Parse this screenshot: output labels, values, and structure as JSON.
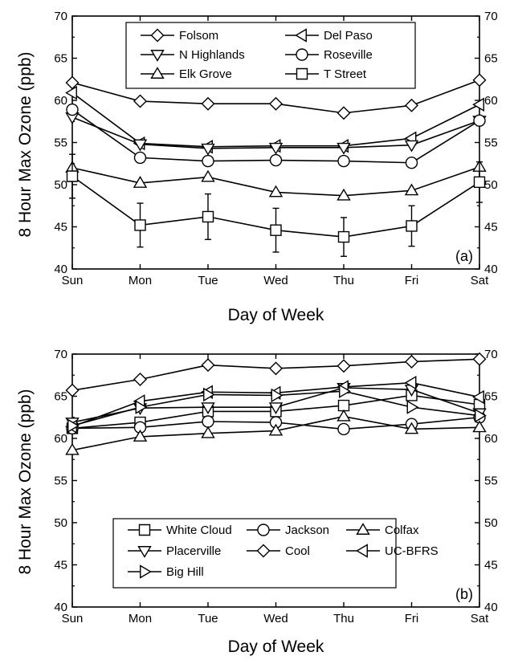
{
  "chart_data": [
    {
      "type": "line",
      "panel_label": "(a)",
      "xlabel": "Day of Week",
      "ylabel": "8 Hour Max Ozone (ppb)",
      "categories": [
        "Sun",
        "Mon",
        "Tue",
        "Wed",
        "Thu",
        "Fri",
        "Sat"
      ],
      "ylim": [
        40,
        70
      ],
      "yticks": [
        "40",
        "45",
        "50",
        "55",
        "60",
        "65",
        "70"
      ],
      "right_axis": true,
      "legend_position": "top-center",
      "series": [
        {
          "name": "Folsom",
          "marker": "diamond",
          "values": [
            62.1,
            59.9,
            59.6,
            59.6,
            58.5,
            59.4,
            62.4
          ]
        },
        {
          "name": "Del Paso",
          "marker": "triangle-left",
          "values": [
            60.9,
            54.9,
            54.5,
            54.6,
            54.6,
            55.5,
            59.5
          ]
        },
        {
          "name": "N Highlands",
          "marker": "triangle-down",
          "values": [
            58.0,
            54.8,
            54.3,
            54.4,
            54.4,
            54.7,
            57.6
          ]
        },
        {
          "name": "Roseville",
          "marker": "circle",
          "values": [
            58.9,
            53.2,
            52.8,
            52.9,
            52.8,
            52.6,
            57.6
          ]
        },
        {
          "name": "Elk Grove",
          "marker": "triangle-up",
          "values": [
            52.0,
            50.2,
            50.9,
            49.1,
            48.7,
            49.3,
            52.1
          ]
        },
        {
          "name": "T Street",
          "marker": "square",
          "values": [
            51.0,
            45.2,
            46.2,
            44.6,
            43.8,
            45.1,
            50.3
          ],
          "error": [
            2.6,
            2.6,
            2.7,
            2.6,
            2.3,
            2.4,
            2.4
          ]
        }
      ]
    },
    {
      "type": "line",
      "panel_label": "(b)",
      "xlabel": "Day of Week",
      "ylabel": "8 Hour Max Ozone (ppb)",
      "categories": [
        "Sun",
        "Mon",
        "Tue",
        "Wed",
        "Thu",
        "Fri",
        "Sat"
      ],
      "ylim": [
        40,
        70
      ],
      "yticks": [
        "40",
        "45",
        "50",
        "55",
        "60",
        "65",
        "70"
      ],
      "right_axis": true,
      "legend_position": "bottom-center",
      "series": [
        {
          "name": "White Cloud",
          "marker": "square",
          "values": [
            61.2,
            61.9,
            63.2,
            63.2,
            63.9,
            65.1,
            64.0
          ]
        },
        {
          "name": "Jackson",
          "marker": "circle",
          "values": [
            61.2,
            61.3,
            62.0,
            61.9,
            61.1,
            61.7,
            62.5
          ]
        },
        {
          "name": "Colfax",
          "marker": "triangle-up",
          "values": [
            58.6,
            60.2,
            60.6,
            60.9,
            62.6,
            61.1,
            61.3
          ]
        },
        {
          "name": "Placerville",
          "marker": "triangle-down",
          "values": [
            61.9,
            63.6,
            63.7,
            63.7,
            66.0,
            65.8,
            63.0
          ]
        },
        {
          "name": "Cool",
          "marker": "diamond",
          "values": [
            65.7,
            67.0,
            68.7,
            68.3,
            68.6,
            69.1,
            69.4
          ]
        },
        {
          "name": "UC-BFRS",
          "marker": "triangle-left",
          "values": [
            61.4,
            64.4,
            65.5,
            65.4,
            66.1,
            66.6,
            64.9
          ]
        },
        {
          "name": "Big Hill",
          "marker": "triangle-right",
          "values": [
            61.5,
            63.7,
            65.2,
            65.1,
            65.6,
            63.7,
            62.7
          ]
        }
      ]
    }
  ]
}
